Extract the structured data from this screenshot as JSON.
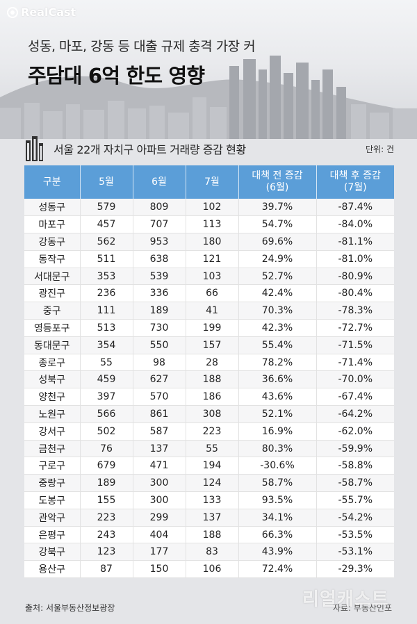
{
  "brand": "RealCast",
  "headline": {
    "line1": "성동, 마포, 강동 등 대출 규제 충격 가장 커",
    "line2": "주담대 6억 한도 영향"
  },
  "table_title": "서울 22개 자치구 아파트 거래량 증감 현황",
  "unit": "단위: 건",
  "source": "출처: 서울부동산정보광장",
  "credit": "자료: 부동산인포",
  "watermark": "리얼캐스트",
  "colors": {
    "header": "#5b9ed8",
    "header_text": "#ffffff"
  },
  "icons": [
    "building-icon",
    "logo-icon"
  ],
  "chart_data": {
    "type": "table",
    "title": "서울 22개 자치구 아파트 거래량 증감 현황",
    "columns": [
      "구분",
      "5월",
      "6월",
      "7월",
      "대책 전 증감\n(6월)",
      "대책 후 증감\n(7월)"
    ],
    "rows": [
      [
        "성동구",
        "579",
        "809",
        "102",
        "39.7%",
        "-87.4%"
      ],
      [
        "마포구",
        "457",
        "707",
        "113",
        "54.7%",
        "-84.0%"
      ],
      [
        "강동구",
        "562",
        "953",
        "180",
        "69.6%",
        "-81.1%"
      ],
      [
        "동작구",
        "511",
        "638",
        "121",
        "24.9%",
        "-81.0%"
      ],
      [
        "서대문구",
        "353",
        "539",
        "103",
        "52.7%",
        "-80.9%"
      ],
      [
        "광진구",
        "236",
        "336",
        "66",
        "42.4%",
        "-80.4%"
      ],
      [
        "중구",
        "111",
        "189",
        "41",
        "70.3%",
        "-78.3%"
      ],
      [
        "영등포구",
        "513",
        "730",
        "199",
        "42.3%",
        "-72.7%"
      ],
      [
        "동대문구",
        "354",
        "550",
        "157",
        "55.4%",
        "-71.5%"
      ],
      [
        "종로구",
        "55",
        "98",
        "28",
        "78.2%",
        "-71.4%"
      ],
      [
        "성북구",
        "459",
        "627",
        "188",
        "36.6%",
        "-70.0%"
      ],
      [
        "양천구",
        "397",
        "570",
        "186",
        "43.6%",
        "-67.4%"
      ],
      [
        "노원구",
        "566",
        "861",
        "308",
        "52.1%",
        "-64.2%"
      ],
      [
        "강서구",
        "502",
        "587",
        "223",
        "16.9%",
        "-62.0%"
      ],
      [
        "금천구",
        "76",
        "137",
        "55",
        "80.3%",
        "-59.9%"
      ],
      [
        "구로구",
        "679",
        "471",
        "194",
        "-30.6%",
        "-58.8%"
      ],
      [
        "중랑구",
        "189",
        "300",
        "124",
        "58.7%",
        "-58.7%"
      ],
      [
        "도봉구",
        "155",
        "300",
        "133",
        "93.5%",
        "-55.7%"
      ],
      [
        "관악구",
        "223",
        "299",
        "137",
        "34.1%",
        "-54.2%"
      ],
      [
        "은평구",
        "243",
        "404",
        "188",
        "66.3%",
        "-53.5%"
      ],
      [
        "강북구",
        "123",
        "177",
        "83",
        "43.9%",
        "-53.1%"
      ],
      [
        "용산구",
        "87",
        "150",
        "106",
        "72.4%",
        "-29.3%"
      ]
    ]
  }
}
